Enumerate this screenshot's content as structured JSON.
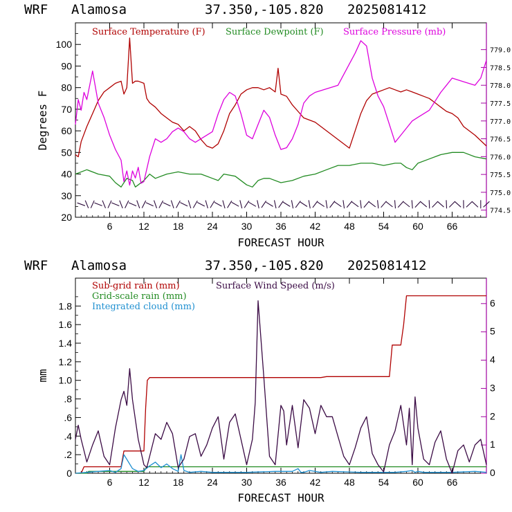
{
  "colors": {
    "temperature": "#b00000",
    "dewpoint": "#228b22",
    "pressure": "#dd00dd",
    "subgrid_rain": "#b00000",
    "gridscale_rain": "#228b22",
    "cloud": "#1e8fd0",
    "wind_speed": "#3a0a44",
    "frame": "#a000a0"
  },
  "chart_data": [
    {
      "type": "line",
      "header": {
        "model": "WRF",
        "station": "Alamosa",
        "coords": "37.350,-105.820",
        "init": "2025081412"
      },
      "xlabel": "FORECAST HOUR",
      "ylabel": "Degrees F",
      "xlim": [
        0,
        72
      ],
      "ylim": [
        20,
        110
      ],
      "y2lim": [
        774.3,
        779.75
      ],
      "xticks": [
        6,
        12,
        18,
        24,
        30,
        36,
        42,
        48,
        54,
        60,
        66
      ],
      "xtick_labels": [
        "6",
        "12",
        "18",
        "24",
        "30",
        "36",
        "42",
        "48",
        "54",
        "60",
        "66"
      ],
      "yticks": [
        20,
        30,
        40,
        50,
        60,
        70,
        80,
        90,
        100
      ],
      "yticks_minor": [
        25,
        35,
        45,
        55,
        65,
        75,
        85,
        95,
        105
      ],
      "y2ticks": [
        774.5,
        775.0,
        775.5,
        776.0,
        776.5,
        777.0,
        777.5,
        778.0,
        778.5,
        779.0
      ],
      "y2tick_labels": [
        "774.5",
        "775.0",
        "775.5",
        "776.0",
        "776.5",
        "777.0",
        "777.5",
        "778.0",
        "778.5",
        "779.0"
      ],
      "grid": false,
      "legend": "top",
      "series": [
        {
          "name": "Surface Temperature (F)",
          "axis": "left",
          "x": [
            0,
            0.5,
            1,
            2,
            3,
            4,
            5,
            6,
            7,
            8,
            8.5,
            9,
            9.5,
            10,
            10.5,
            11,
            12,
            12.5,
            13,
            14,
            15,
            16,
            17,
            18,
            19,
            20,
            21,
            22,
            23,
            24,
            25,
            26,
            27,
            28,
            29,
            30,
            31,
            32,
            33,
            34,
            35,
            35.5,
            36,
            37,
            38,
            39,
            40,
            42,
            44,
            46,
            48,
            49,
            50,
            51,
            52,
            53,
            54,
            55,
            56,
            57,
            58,
            59,
            60,
            61,
            62,
            63,
            64,
            65,
            66,
            67,
            68,
            70,
            72
          ],
          "values": [
            49,
            48,
            55,
            62,
            68,
            74,
            78,
            80,
            82,
            83,
            77,
            80,
            103,
            82,
            83,
            83,
            82,
            75,
            73,
            71,
            68,
            66,
            64,
            63,
            60,
            62,
            60,
            56,
            53,
            52,
            54,
            60,
            68,
            72,
            77,
            79,
            80,
            80,
            79,
            80,
            78,
            89,
            77,
            76,
            72,
            69,
            66,
            64,
            60,
            56,
            52,
            60,
            68,
            74,
            77,
            78,
            79,
            80,
            79,
            78,
            79,
            78,
            77,
            76,
            75,
            73,
            71,
            69,
            68,
            66,
            62,
            58,
            53
          ]
        },
        {
          "name": "Surface Dewpoint (F)",
          "axis": "left",
          "x": [
            0,
            2,
            4,
            6,
            7,
            8,
            8.5,
            9,
            10,
            10.5,
            11,
            12,
            13,
            14,
            16,
            18,
            20,
            22,
            24,
            25,
            26,
            28,
            30,
            31,
            32,
            33,
            34,
            36,
            38,
            40,
            42,
            44,
            46,
            48,
            50,
            52,
            54,
            56,
            57,
            58,
            59,
            60,
            62,
            64,
            66,
            68,
            70,
            72
          ],
          "values": [
            40,
            42,
            40,
            39,
            36,
            34,
            36,
            38,
            37,
            34,
            35,
            37,
            40,
            38,
            40,
            41,
            40,
            40,
            38,
            37,
            40,
            39,
            35,
            34,
            37,
            38,
            38,
            36,
            37,
            39,
            40,
            42,
            44,
            44,
            45,
            45,
            44,
            45,
            45,
            43,
            42,
            45,
            47,
            49,
            50,
            50,
            48,
            47
          ]
        },
        {
          "name": "Surface Pressure (mb)",
          "axis": "right",
          "x": [
            0,
            0.5,
            1,
            1.5,
            2,
            3,
            4,
            5,
            6,
            7,
            8,
            8.5,
            9,
            9.5,
            10,
            10.5,
            11,
            11.5,
            12,
            13,
            14,
            15,
            16,
            17,
            18,
            19,
            20,
            21,
            22,
            24,
            25,
            26,
            27,
            28,
            29,
            30,
            31,
            32,
            33,
            34,
            35,
            36,
            37,
            38,
            39,
            40,
            41,
            42,
            44,
            46,
            48,
            49,
            50,
            51,
            52,
            53,
            54,
            55,
            56,
            57,
            58,
            59,
            60,
            62,
            64,
            65,
            66,
            68,
            70,
            71,
            72
          ],
          "values": [
            776.9,
            777.6,
            777.3,
            777.8,
            777.6,
            778.4,
            777.5,
            777.1,
            776.6,
            776.2,
            775.9,
            775.3,
            775.6,
            775.2,
            775.6,
            775.4,
            775.7,
            775.25,
            775.3,
            776.0,
            776.5,
            776.4,
            776.5,
            776.7,
            776.8,
            776.7,
            776.5,
            776.4,
            776.5,
            776.7,
            777.2,
            777.6,
            777.8,
            777.7,
            777.2,
            776.6,
            776.5,
            776.9,
            777.3,
            777.1,
            776.6,
            776.2,
            776.25,
            776.5,
            776.9,
            777.5,
            777.7,
            777.8,
            777.9,
            778.0,
            778.6,
            778.9,
            779.25,
            779.1,
            778.2,
            777.7,
            777.4,
            776.9,
            776.4,
            776.6,
            776.8,
            777.0,
            777.1,
            777.3,
            777.8,
            778.0,
            778.2,
            778.1,
            778.0,
            778.2,
            778.7
          ]
        }
      ],
      "wind_barbs": {
        "y_level": 26,
        "x": [
          1,
          2,
          3,
          4,
          5,
          6,
          7,
          8,
          9,
          10,
          11,
          12,
          13,
          14,
          15,
          16,
          17,
          18,
          19,
          20,
          21,
          22,
          23,
          24,
          25,
          26,
          27,
          28,
          29,
          30,
          31,
          32,
          33,
          34,
          35,
          36,
          37,
          38,
          39,
          40,
          41,
          42,
          43,
          44,
          45,
          46,
          47,
          48,
          49,
          50,
          51,
          52,
          53,
          54,
          55,
          56,
          57,
          58,
          59,
          60,
          61,
          62,
          63,
          64,
          65,
          66,
          67,
          68,
          69,
          70,
          71,
          72
        ]
      }
    },
    {
      "type": "line",
      "header": {
        "model": "WRF",
        "station": "Alamosa",
        "coords": "37.350,-105.820",
        "init": "2025081412"
      },
      "xlabel": "FORECAST HOUR",
      "ylabel": "mm",
      "xlim": [
        0,
        72
      ],
      "ylim": [
        0,
        2.1
      ],
      "y2lim": [
        0,
        6.9
      ],
      "xticks": [
        6,
        12,
        18,
        24,
        30,
        36,
        42,
        48,
        54,
        60,
        66
      ],
      "xtick_labels": [
        "6",
        "12",
        "18",
        "24",
        "30",
        "36",
        "42",
        "48",
        "54",
        "60",
        "66"
      ],
      "yticks": [
        0,
        0.2,
        0.4,
        0.6,
        0.8,
        1.0,
        1.2,
        1.4,
        1.6,
        1.8
      ],
      "ytick_labels": [
        "0",
        ".2",
        ".4",
        ".6",
        ".8",
        "1.0",
        "1.2",
        "1.4",
        "1.6",
        "1.8"
      ],
      "yticks_minor": [
        0.1,
        0.3,
        0.5,
        0.7,
        0.9,
        1.1,
        1.3,
        1.5,
        1.7,
        1.9
      ],
      "y2ticks": [
        0,
        1,
        2,
        3,
        4,
        5,
        6
      ],
      "y2tick_labels": [
        "0",
        "1",
        "2",
        "3",
        "4",
        "5",
        "6"
      ],
      "grid": false,
      "legend": "top-left",
      "series": [
        {
          "name": "Sub-grid rain (mm)",
          "axis": "left",
          "x": [
            0,
            1,
            1.5,
            8,
            8.5,
            12,
            12.3,
            12.6,
            13,
            43,
            44,
            55,
            55.5,
            57,
            57.5,
            58,
            60,
            72
          ],
          "values": [
            0,
            0,
            0.07,
            0.07,
            0.24,
            0.24,
            0.7,
            1.0,
            1.03,
            1.03,
            1.04,
            1.04,
            1.38,
            1.38,
            1.6,
            1.91,
            1.91,
            1.91
          ]
        },
        {
          "name": "Grid-scale rain (mm)",
          "axis": "left",
          "x": [
            0,
            2,
            2.3,
            12,
            12.5,
            72
          ],
          "values": [
            0,
            0,
            0.02,
            0.02,
            0.07,
            0.07
          ]
        },
        {
          "name": "Integrated cloud (mm)",
          "axis": "left",
          "x": [
            0,
            2,
            4,
            6,
            7,
            8,
            8.5,
            9,
            9.5,
            10,
            11,
            12,
            13,
            14,
            15,
            16,
            17,
            18,
            18.5,
            19,
            20,
            22,
            24,
            30,
            35,
            38,
            39,
            39.5,
            40,
            41,
            43,
            45,
            50,
            56,
            58,
            59,
            59.5,
            60,
            61,
            62,
            66,
            70,
            72
          ],
          "values": [
            0,
            0.01,
            0.02,
            0.03,
            0.01,
            0.05,
            0.2,
            0.15,
            0.1,
            0.05,
            0.02,
            0.03,
            0.08,
            0.12,
            0.06,
            0.1,
            0.05,
            0.02,
            0.2,
            0.03,
            0.01,
            0.02,
            0.01,
            0.01,
            0.02,
            0.02,
            0.05,
            0.01,
            0.01,
            0.03,
            0.01,
            0.02,
            0.01,
            0.01,
            0.02,
            0.03,
            0.01,
            0.02,
            0.01,
            0.01,
            0.01,
            0.02,
            0.01
          ]
        },
        {
          "name": "Surface Wind Speed (m/s)",
          "axis": "right",
          "x": [
            0,
            0.5,
            1,
            2,
            3,
            4,
            5,
            6,
            7,
            8,
            8.5,
            9,
            9.5,
            10,
            11,
            12,
            12.5,
            13,
            14,
            15,
            16,
            17,
            18,
            19,
            20,
            21,
            22,
            23,
            24,
            25,
            26,
            27,
            28,
            29,
            30,
            31,
            31.5,
            32,
            33,
            34,
            35,
            36,
            36.5,
            37,
            38,
            39,
            40,
            41,
            42,
            43,
            44,
            45,
            46,
            47,
            48,
            49,
            50,
            51,
            52,
            53,
            54,
            55,
            56,
            57,
            58,
            58.5,
            59,
            59.5,
            60,
            61,
            62,
            63,
            64,
            65,
            66,
            67,
            68,
            69,
            70,
            71,
            72
          ],
          "values": [
            1.2,
            1.7,
            1.2,
            0.4,
            1.0,
            1.5,
            0.6,
            0.3,
            1.6,
            2.6,
            2.9,
            2.4,
            3.7,
            2.6,
            1.2,
            0.3,
            0.2,
            0.6,
            1.4,
            1.2,
            1.8,
            1.4,
            0.2,
            0.5,
            1.3,
            1.4,
            0.6,
            1.0,
            1.6,
            2.0,
            0.5,
            1.8,
            2.1,
            1.2,
            0.3,
            1.2,
            2.5,
            6.1,
            3.4,
            0.6,
            0.3,
            2.4,
            2.2,
            1.0,
            2.4,
            0.9,
            2.6,
            2.3,
            1.4,
            2.4,
            2.0,
            2.0,
            1.3,
            0.6,
            0.3,
            0.9,
            1.6,
            2.0,
            0.7,
            0.3,
            0.05,
            1.0,
            1.5,
            2.4,
            1.0,
            2.3,
            0.3,
            2.7,
            1.6,
            0.5,
            0.3,
            1.1,
            1.5,
            0.5,
            0.0,
            0.8,
            1.0,
            0.4,
            1.0,
            1.2,
            0.3
          ]
        }
      ]
    }
  ]
}
